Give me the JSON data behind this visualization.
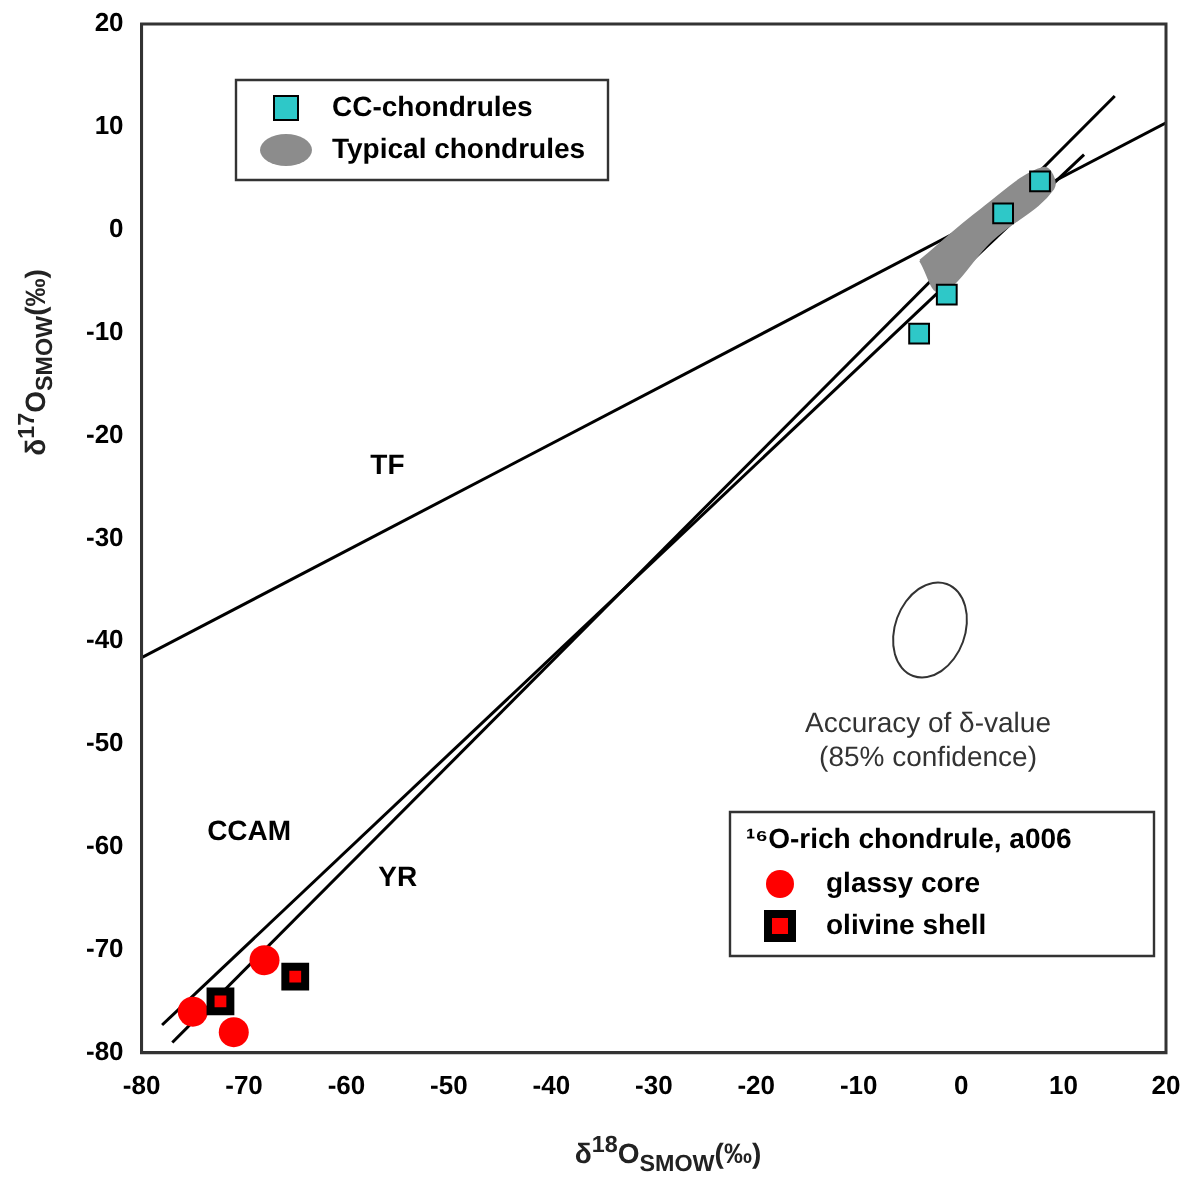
{
  "chart_data": {
    "type": "scatter",
    "xlabel": "δ$^{18}$O$_{SMOW}$(‰)",
    "ylabel": "δ$^{17}$O$_{SMOW}$(‰)",
    "legend": "top left",
    "legend_title": "¹⁶O-rich chondrule, a006",
    "xlim": [
      -80,
      20
    ],
    "ylim": [
      -80,
      20
    ],
    "xticks": [
      -80,
      -70,
      -60,
      -50,
      -40,
      -30,
      -20,
      -10,
      0,
      10,
      20
    ],
    "yticks": [
      -80,
      -70,
      -60,
      -50,
      -40,
      -30,
      -20,
      -10,
      0,
      10,
      20
    ],
    "grid": false,
    "annotations": [
      "Accuracy of δ-value (85% confidence)"
    ],
    "series": [
      {
        "name": "CC-chondrules",
        "type": "scatter",
        "marker": "square",
        "color": "#2ec8c8",
        "x": [
          -4.1,
          -1.4,
          4.1,
          7.7
        ],
        "values": [
          -10.1,
          -6.3,
          1.6,
          4.7
        ]
      },
      {
        "name": "Typical chondrules",
        "type": "area",
        "color": "#8c8c8c",
        "x": [
          -4,
          -2,
          3,
          9,
          8,
          2,
          -4
        ],
        "values": [
          -3,
          -6,
          -1,
          4,
          6,
          2,
          -3
        ]
      },
      {
        "name": "glassy core",
        "type": "scatter",
        "marker": "circle",
        "color": "#ff0000",
        "x": [
          -75,
          -73.5,
          -71,
          -68
        ],
        "values": [
          -76,
          null,
          -78,
          -71
        ]
      },
      {
        "name": "olivine shell",
        "type": "scatter",
        "marker": "square",
        "color": "#ff0000",
        "x": [
          -72.3,
          -65
        ],
        "values": [
          -75,
          -72.6
        ]
      },
      {
        "name": "TF",
        "type": "line",
        "color": "#000000",
        "x": [
          -80,
          20
        ],
        "values": [
          -41.6,
          10.4
        ]
      },
      {
        "name": "CCAM",
        "type": "line",
        "color": "#000000",
        "x": [
          -78,
          12
        ],
        "values": [
          -77.3,
          7.3
        ]
      },
      {
        "name": "YR",
        "type": "line",
        "color": "#000000",
        "x": [
          -77,
          15
        ],
        "values": [
          -79,
          13
        ]
      }
    ]
  }
}
